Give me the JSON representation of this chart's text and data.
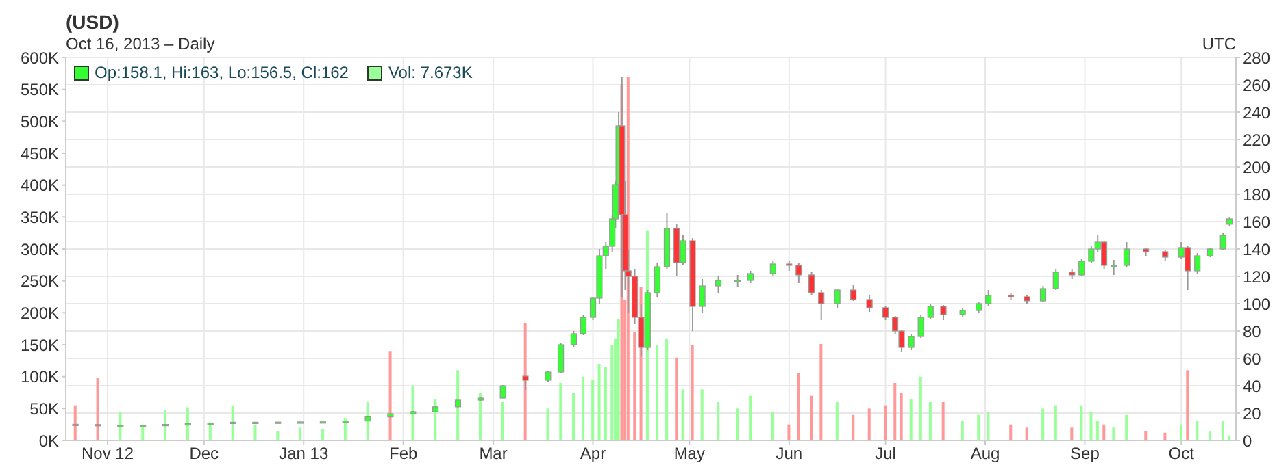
{
  "chart_data": {
    "type": "candlestick",
    "title": "(USD)",
    "subtitle": "Oct 16, 2013 – Daily",
    "annotations": [
      "UTC"
    ],
    "x": [
      "2012-10-22",
      "2012-10-29",
      "2012-11-05",
      "2012-11-12",
      "2012-11-19",
      "2012-11-26",
      "2012-12-03",
      "2012-12-10",
      "2012-12-17",
      "2012-12-24",
      "2012-12-31",
      "2013-01-07",
      "2013-01-14",
      "2013-01-21",
      "2013-01-28",
      "2013-02-04",
      "2013-02-11",
      "2013-02-18",
      "2013-02-25",
      "2013-03-04",
      "2013-03-11",
      "2013-03-18",
      "2013-03-22",
      "2013-03-26",
      "2013-03-29",
      "2013-04-01",
      "2013-04-03",
      "2013-04-05",
      "2013-04-07",
      "2013-04-08",
      "2013-04-09",
      "2013-04-10",
      "2013-04-11",
      "2013-04-12",
      "2013-04-14",
      "2013-04-16",
      "2013-04-18",
      "2013-04-21",
      "2013-04-24",
      "2013-04-27",
      "2013-04-29",
      "2013-05-02",
      "2013-05-05",
      "2013-05-10",
      "2013-05-16",
      "2013-05-20",
      "2013-05-27",
      "2013-06-01",
      "2013-06-04",
      "2013-06-08",
      "2013-06-11",
      "2013-06-16",
      "2013-06-21",
      "2013-06-26",
      "2013-07-01",
      "2013-07-04",
      "2013-07-06",
      "2013-07-09",
      "2013-07-12",
      "2013-07-15",
      "2013-07-19",
      "2013-07-25",
      "2013-07-30",
      "2013-08-02",
      "2013-08-09",
      "2013-08-14",
      "2013-08-19",
      "2013-08-23",
      "2013-08-28",
      "2013-08-31",
      "2013-09-03",
      "2013-09-05",
      "2013-09-07",
      "2013-09-10",
      "2013-09-14",
      "2013-09-20",
      "2013-09-26",
      "2013-10-01",
      "2013-10-03",
      "2013-10-06",
      "2013-10-10",
      "2013-10-14",
      "2013-10-16"
    ],
    "series": [
      {
        "name": "Op:158.1, Hi:163, Lo:156.5, Cl:162",
        "color": "#33ff33",
        "axis": "y2",
        "ohlc": [
          [
            11.8,
            11.9,
            11.4,
            11.6
          ],
          [
            11.6,
            11.7,
            10.6,
            10.8
          ],
          [
            10.8,
            11,
            10.6,
            10.9
          ],
          [
            10.9,
            11.2,
            10.8,
            11
          ],
          [
            11,
            11.8,
            10.9,
            11.7
          ],
          [
            11.7,
            12.4,
            11.6,
            12.2
          ],
          [
            12.2,
            12.6,
            12.1,
            12.5
          ],
          [
            12.5,
            13.5,
            12.4,
            13.3
          ],
          [
            13.3,
            13.6,
            13,
            13.3
          ],
          [
            13.3,
            13.6,
            13.2,
            13.4
          ],
          [
            13.4,
            13.7,
            13.3,
            13.5
          ],
          [
            13.5,
            13.9,
            13.4,
            13.6
          ],
          [
            13.6,
            14.5,
            13.5,
            14.2
          ],
          [
            14.2,
            17.5,
            14.1,
            17.2
          ],
          [
            17.2,
            19.8,
            16.8,
            19.5
          ],
          [
            19.5,
            21.5,
            19.2,
            21
          ],
          [
            21,
            25,
            20.8,
            24.6
          ],
          [
            24.6,
            29.8,
            24.3,
            29.5
          ],
          [
            29.5,
            31.5,
            29,
            31
          ],
          [
            31,
            40.5,
            30.8,
            40
          ],
          [
            47,
            48,
            37,
            44
          ],
          [
            44,
            51,
            43,
            50
          ],
          [
            50,
            71,
            49,
            70
          ],
          [
            70,
            80,
            68,
            78
          ],
          [
            78,
            92,
            77,
            90
          ],
          [
            90,
            105,
            88,
            104
          ],
          [
            104,
            140,
            100,
            135
          ],
          [
            135,
            145,
            125,
            142
          ],
          [
            142,
            165,
            138,
            162
          ],
          [
            162,
            190,
            155,
            187
          ],
          [
            187,
            240,
            180,
            230
          ],
          [
            230,
            266,
            105,
            165
          ],
          [
            165,
            190,
            110,
            124
          ],
          [
            124,
            140,
            93,
            120
          ],
          [
            120,
            125,
            85,
            90
          ],
          [
            90,
            100,
            62,
            68
          ],
          [
            68,
            110,
            66,
            108
          ],
          [
            108,
            130,
            105,
            127
          ],
          [
            127,
            166,
            125,
            155
          ],
          [
            155,
            158,
            120,
            130
          ],
          [
            130,
            150,
            128,
            146
          ],
          [
            146,
            148,
            80,
            98
          ],
          [
            98,
            118,
            93,
            113
          ],
          [
            113,
            120,
            108,
            117
          ],
          [
            117,
            121,
            112,
            117
          ],
          [
            117,
            124,
            115,
            122
          ],
          [
            122,
            131,
            120,
            129
          ],
          [
            129,
            131,
            124,
            128
          ],
          [
            128,
            130,
            115,
            121
          ],
          [
            121,
            123,
            106,
            108
          ],
          [
            108,
            110,
            88,
            100
          ],
          [
            100,
            111,
            97,
            110
          ],
          [
            110,
            114,
            102,
            103
          ],
          [
            103,
            106,
            94,
            97
          ],
          [
            97,
            98,
            88,
            90
          ],
          [
            90,
            91,
            78,
            80
          ],
          [
            80,
            81,
            65,
            68
          ],
          [
            68,
            78,
            66,
            76
          ],
          [
            76,
            92,
            75,
            90
          ],
          [
            90,
            100,
            89,
            98
          ],
          [
            98,
            99,
            88,
            92
          ],
          [
            92,
            97,
            90,
            95
          ],
          [
            95,
            101,
            93,
            100
          ],
          [
            100,
            110,
            98,
            106
          ],
          [
            106,
            108,
            103,
            105
          ],
          [
            105,
            106,
            100,
            102
          ],
          [
            102,
            113,
            101,
            111
          ],
          [
            111,
            125,
            110,
            123
          ],
          [
            123,
            125,
            118,
            121
          ],
          [
            121,
            133,
            120,
            131
          ],
          [
            131,
            142,
            130,
            140
          ],
          [
            140,
            150,
            138,
            145
          ],
          [
            145,
            146,
            125,
            128
          ],
          [
            128,
            132,
            121,
            128
          ],
          [
            128,
            145,
            127,
            140
          ],
          [
            140,
            141,
            135,
            138
          ],
          [
            138,
            139,
            131,
            134
          ],
          [
            134,
            145,
            133,
            141
          ],
          [
            141,
            142,
            110,
            124
          ],
          [
            124,
            137,
            122,
            135
          ],
          [
            135,
            141,
            134,
            140
          ],
          [
            140,
            152,
            139,
            150
          ],
          [
            158.1,
            163,
            156.5,
            162
          ]
        ],
        "colors": [
          "#ff3333",
          "#ff3333",
          "#33ff33",
          "#33ff33",
          "#33ff33",
          "#33ff33",
          "#33ff33",
          "#33ff33",
          "#33ff33",
          "#33ff33",
          "#33ff33",
          "#33ff33",
          "#33ff33",
          "#33ff33",
          "#33ff33",
          "#33ff33",
          "#33ff33",
          "#33ff33",
          "#33ff33",
          "#33ff33",
          "#ff3333",
          "#33ff33",
          "#33ff33",
          "#33ff33",
          "#33ff33",
          "#33ff33",
          "#33ff33",
          "#33ff33",
          "#33ff33",
          "#33ff33",
          "#33ff33",
          "#ff3333",
          "#ff3333",
          "#ff3333",
          "#ff3333",
          "#ff3333",
          "#33ff33",
          "#33ff33",
          "#33ff33",
          "#ff3333",
          "#33ff33",
          "#ff3333",
          "#33ff33",
          "#33ff33",
          "#33ff33",
          "#33ff33",
          "#33ff33",
          "#ff3333",
          "#ff3333",
          "#ff3333",
          "#ff3333",
          "#33ff33",
          "#ff3333",
          "#ff3333",
          "#ff3333",
          "#ff3333",
          "#ff3333",
          "#33ff33",
          "#33ff33",
          "#33ff33",
          "#ff3333",
          "#33ff33",
          "#33ff33",
          "#33ff33",
          "#ff3333",
          "#ff3333",
          "#33ff33",
          "#33ff33",
          "#ff3333",
          "#33ff33",
          "#33ff33",
          "#33ff33",
          "#ff3333",
          "#33ff33",
          "#33ff33",
          "#ff3333",
          "#ff3333",
          "#33ff33",
          "#ff3333",
          "#33ff33",
          "#33ff33",
          "#33ff33",
          "#33ff33"
        ]
      },
      {
        "type": "bar",
        "name": "Vol: 7.673K",
        "color": "#99ff99",
        "axis": "y",
        "values": [
          55000,
          98000,
          45000,
          22000,
          48000,
          52000,
          28000,
          55000,
          25000,
          15000,
          20000,
          18000,
          35000,
          60000,
          140000,
          85000,
          65000,
          110000,
          75000,
          60000,
          184000,
          50000,
          90000,
          75000,
          100000,
          95000,
          120000,
          115000,
          150000,
          160000,
          190000,
          558000,
          220000,
          570000,
          170000,
          240000,
          328000,
          150000,
          160000,
          130000,
          80000,
          150000,
          80000,
          60000,
          50000,
          70000,
          45000,
          25000,
          105000,
          70000,
          151000,
          60000,
          40000,
          50000,
          55000,
          90000,
          75000,
          65000,
          100000,
          60000,
          60000,
          30000,
          40000,
          45000,
          25000,
          20000,
          50000,
          55000,
          20000,
          55000,
          45000,
          30000,
          25000,
          20000,
          40000,
          15000,
          12000,
          25000,
          110000,
          30000,
          15000,
          30000,
          7673
        ],
        "colors": [
          "#ff9999",
          "#ff9999",
          "#99ff99",
          "#99ff99",
          "#99ff99",
          "#99ff99",
          "#99ff99",
          "#99ff99",
          "#99ff99",
          "#99ff99",
          "#99ff99",
          "#99ff99",
          "#99ff99",
          "#99ff99",
          "#ff9999",
          "#99ff99",
          "#99ff99",
          "#99ff99",
          "#99ff99",
          "#99ff99",
          "#ff9999",
          "#99ff99",
          "#99ff99",
          "#99ff99",
          "#99ff99",
          "#99ff99",
          "#99ff99",
          "#99ff99",
          "#99ff99",
          "#99ff99",
          "#99ff99",
          "#ff9999",
          "#ff9999",
          "#ff9999",
          "#ff9999",
          "#ff9999",
          "#99ff99",
          "#99ff99",
          "#99ff99",
          "#ff9999",
          "#99ff99",
          "#ff9999",
          "#99ff99",
          "#99ff99",
          "#99ff99",
          "#99ff99",
          "#99ff99",
          "#ff9999",
          "#ff9999",
          "#ff9999",
          "#ff9999",
          "#99ff99",
          "#ff9999",
          "#ff9999",
          "#ff9999",
          "#ff9999",
          "#ff9999",
          "#99ff99",
          "#99ff99",
          "#99ff99",
          "#ff9999",
          "#99ff99",
          "#99ff99",
          "#99ff99",
          "#ff9999",
          "#ff9999",
          "#99ff99",
          "#99ff99",
          "#ff9999",
          "#99ff99",
          "#99ff99",
          "#99ff99",
          "#ff9999",
          "#99ff99",
          "#99ff99",
          "#ff9999",
          "#ff9999",
          "#99ff99",
          "#ff9999",
          "#99ff99",
          "#99ff99",
          "#99ff99",
          "#99ff99"
        ]
      }
    ],
    "xlim": [
      "2012-10-19",
      "2013-10-18"
    ],
    "xticks": [
      {
        "value": "2012-11-01",
        "label": "Nov 12"
      },
      {
        "value": "2012-12-01",
        "label": "Dec"
      },
      {
        "value": "2013-01-01",
        "label": "Jan 13"
      },
      {
        "value": "2013-02-01",
        "label": "Feb"
      },
      {
        "value": "2013-03-01",
        "label": "Mar"
      },
      {
        "value": "2013-04-01",
        "label": "Apr"
      },
      {
        "value": "2013-05-01",
        "label": "May"
      },
      {
        "value": "2013-06-01",
        "label": "Jun"
      },
      {
        "value": "2013-07-01",
        "label": "Jul"
      },
      {
        "value": "2013-08-01",
        "label": "Aug"
      },
      {
        "value": "2013-09-01",
        "label": "Sep"
      },
      {
        "value": "2013-10-01",
        "label": "Oct"
      }
    ],
    "ylim": [
      0,
      600000
    ],
    "yticks": [
      {
        "value": 0,
        "label": "0K"
      },
      {
        "value": 50000,
        "label": "50K"
      },
      {
        "value": 100000,
        "label": "100K"
      },
      {
        "value": 150000,
        "label": "150K"
      },
      {
        "value": 200000,
        "label": "200K"
      },
      {
        "value": 250000,
        "label": "250K"
      },
      {
        "value": 300000,
        "label": "300K"
      },
      {
        "value": 350000,
        "label": "350K"
      },
      {
        "value": 400000,
        "label": "400K"
      },
      {
        "value": 450000,
        "label": "450K"
      },
      {
        "value": 500000,
        "label": "500K"
      },
      {
        "value": 550000,
        "label": "550K"
      },
      {
        "value": 600000,
        "label": "600K"
      }
    ],
    "y2lim": [
      0,
      280
    ],
    "y2ticks": [
      0,
      20,
      40,
      60,
      80,
      100,
      120,
      140,
      160,
      180,
      200,
      220,
      240,
      260,
      280
    ],
    "grid": true,
    "legend": "top left"
  }
}
